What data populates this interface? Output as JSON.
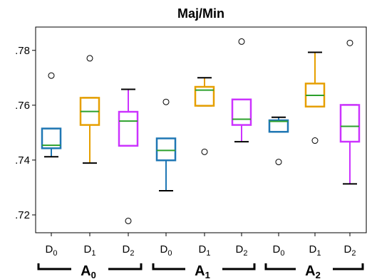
{
  "chart_data": {
    "type": "box",
    "title": "Maj/Min",
    "ylim": [
      0.7135,
      0.7885
    ],
    "yticks": [
      ".72",
      ".74",
      ".76",
      ".78"
    ],
    "ytick_values": [
      0.72,
      0.74,
      0.76,
      0.78
    ],
    "grid": false,
    "colors": {
      "D0": "#1f77b4",
      "D1": "#e69f00",
      "D2": "#cc33ff",
      "median": "#2ca02c"
    },
    "groups": [
      {
        "label": "A",
        "subscript": "0",
        "boxes": [
          {
            "label": "D",
            "subscript": "0",
            "series": "D0",
            "whislo": 0.7412,
            "q1": 0.7443,
            "med": 0.7454,
            "q3": 0.7515,
            "whishi": 0.7515,
            "fliers": [
              0.7708
            ]
          },
          {
            "label": "D",
            "subscript": "1",
            "series": "D1",
            "whislo": 0.7389,
            "q1": 0.7528,
            "med": 0.7577,
            "q3": 0.7627,
            "whishi": 0.7627,
            "fliers": [
              0.7771
            ]
          },
          {
            "label": "D",
            "subscript": "2",
            "series": "D2",
            "whislo": 0.7452,
            "q1": 0.7452,
            "med": 0.7542,
            "q3": 0.7576,
            "whishi": 0.7658,
            "fliers": [
              0.7178
            ]
          }
        ]
      },
      {
        "label": "A",
        "subscript": "1",
        "boxes": [
          {
            "label": "D",
            "subscript": "0",
            "series": "D0",
            "whislo": 0.7288,
            "q1": 0.7399,
            "med": 0.7435,
            "q3": 0.7479,
            "whishi": 0.7479,
            "fliers": [
              0.7612
            ]
          },
          {
            "label": "D",
            "subscript": "1",
            "series": "D1",
            "whislo": 0.7598,
            "q1": 0.7598,
            "med": 0.7655,
            "q3": 0.7667,
            "whishi": 0.77,
            "fliers": [
              0.743
            ]
          },
          {
            "label": "D",
            "subscript": "2",
            "series": "D2",
            "whislo": 0.7467,
            "q1": 0.7528,
            "med": 0.7549,
            "q3": 0.7621,
            "whishi": 0.7621,
            "fliers": [
              0.7832
            ]
          }
        ]
      },
      {
        "label": "A",
        "subscript": "2",
        "boxes": [
          {
            "label": "D",
            "subscript": "0",
            "series": "D0",
            "whislo": 0.7503,
            "q1": 0.7503,
            "med": 0.7541,
            "q3": 0.7545,
            "whishi": 0.7556,
            "fliers": [
              0.7393
            ]
          },
          {
            "label": "D",
            "subscript": "1",
            "series": "D1",
            "whislo": 0.7595,
            "q1": 0.7595,
            "med": 0.7636,
            "q3": 0.7679,
            "whishi": 0.7793,
            "fliers": [
              0.7471
            ]
          },
          {
            "label": "D",
            "subscript": "2",
            "series": "D2",
            "whislo": 0.7313,
            "q1": 0.7467,
            "med": 0.7523,
            "q3": 0.7601,
            "whishi": 0.7601,
            "fliers": [
              0.7827
            ]
          }
        ]
      }
    ]
  }
}
